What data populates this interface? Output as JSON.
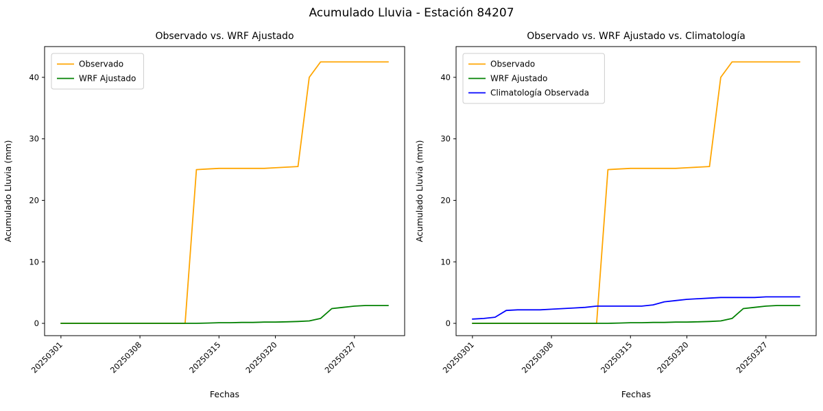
{
  "figure": {
    "title": "Acumulado Lluvia - Estación 84207"
  },
  "chart_data": [
    {
      "type": "line",
      "title": "Observado vs. WRF Ajustado",
      "xlabel": "Fechas",
      "ylabel": "Acumulado Lluvia (mm)",
      "grid": false,
      "legend_position": "upper left",
      "x": [
        "20250301",
        "20250302",
        "20250303",
        "20250304",
        "20250305",
        "20250306",
        "20250307",
        "20250308",
        "20250309",
        "20250310",
        "20250311",
        "20250312",
        "20250313",
        "20250314",
        "20250315",
        "20250316",
        "20250317",
        "20250318",
        "20250319",
        "20250320",
        "20250321",
        "20250322",
        "20250323",
        "20250324",
        "20250325",
        "20250326",
        "20250327",
        "20250328",
        "20250329",
        "20250330"
      ],
      "x_tick_labels": [
        "20250301",
        "20250308",
        "20250315",
        "20250320",
        "20250327"
      ],
      "y_ticks": [
        0,
        10,
        20,
        30,
        40
      ],
      "ylim": [
        -2,
        45
      ],
      "series": [
        {
          "name": "Observado",
          "color": "#ffa500",
          "values": [
            0,
            0,
            0,
            0,
            0,
            0,
            0,
            0,
            0,
            0,
            0,
            0,
            25.0,
            25.1,
            25.2,
            25.2,
            25.2,
            25.2,
            25.2,
            25.3,
            25.4,
            25.5,
            40.0,
            42.5,
            42.5,
            42.5,
            42.5,
            42.5,
            42.5,
            42.5
          ]
        },
        {
          "name": "WRF Ajustado",
          "color": "#008000",
          "values": [
            0,
            0,
            0,
            0,
            0,
            0,
            0,
            0,
            0,
            0,
            0,
            0,
            0,
            0.05,
            0.1,
            0.1,
            0.15,
            0.15,
            0.2,
            0.2,
            0.25,
            0.3,
            0.4,
            0.8,
            2.4,
            2.6,
            2.8,
            2.9,
            2.9,
            2.9
          ]
        }
      ]
    },
    {
      "type": "line",
      "title": "Observado vs. WRF Ajustado vs. Climatología",
      "xlabel": "Fechas",
      "ylabel": "Acumulado Lluvia (mm)",
      "grid": false,
      "legend_position": "upper left",
      "x": [
        "20250301",
        "20250302",
        "20250303",
        "20250304",
        "20250305",
        "20250306",
        "20250307",
        "20250308",
        "20250309",
        "20250310",
        "20250311",
        "20250312",
        "20250313",
        "20250314",
        "20250315",
        "20250316",
        "20250317",
        "20250318",
        "20250319",
        "20250320",
        "20250321",
        "20250322",
        "20250323",
        "20250324",
        "20250325",
        "20250326",
        "20250327",
        "20250328",
        "20250329",
        "20250330"
      ],
      "x_tick_labels": [
        "20250301",
        "20250308",
        "20250315",
        "20250320",
        "20250327"
      ],
      "y_ticks": [
        0,
        10,
        20,
        30,
        40
      ],
      "ylim": [
        -2,
        45
      ],
      "series": [
        {
          "name": "Observado",
          "color": "#ffa500",
          "values": [
            0,
            0,
            0,
            0,
            0,
            0,
            0,
            0,
            0,
            0,
            0,
            0,
            25.0,
            25.1,
            25.2,
            25.2,
            25.2,
            25.2,
            25.2,
            25.3,
            25.4,
            25.5,
            40.0,
            42.5,
            42.5,
            42.5,
            42.5,
            42.5,
            42.5,
            42.5
          ]
        },
        {
          "name": "WRF Ajustado",
          "color": "#008000",
          "values": [
            0,
            0,
            0,
            0,
            0,
            0,
            0,
            0,
            0,
            0,
            0,
            0,
            0,
            0.05,
            0.1,
            0.1,
            0.15,
            0.15,
            0.2,
            0.2,
            0.25,
            0.3,
            0.4,
            0.8,
            2.4,
            2.6,
            2.8,
            2.9,
            2.9,
            2.9
          ]
        },
        {
          "name": "Climatología Observada",
          "color": "#0000ff",
          "values": [
            0.7,
            0.8,
            1.0,
            2.1,
            2.2,
            2.2,
            2.2,
            2.3,
            2.4,
            2.5,
            2.6,
            2.8,
            2.8,
            2.8,
            2.8,
            2.8,
            3.0,
            3.5,
            3.7,
            3.9,
            4.0,
            4.1,
            4.2,
            4.2,
            4.2,
            4.2,
            4.3,
            4.3,
            4.3,
            4.3
          ]
        }
      ]
    }
  ]
}
